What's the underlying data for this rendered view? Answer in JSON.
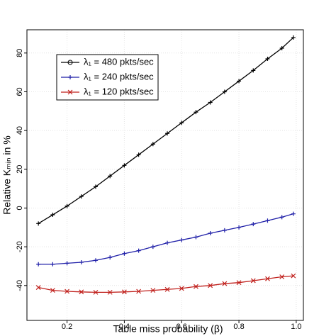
{
  "chart_data": {
    "type": "line",
    "xlabel": "Table miss probability (β)",
    "ylabel": "Relative Kₘᵢₙ in %",
    "x": [
      0.1,
      0.15,
      0.2,
      0.25,
      0.3,
      0.35,
      0.4,
      0.45,
      0.5,
      0.55,
      0.6,
      0.65,
      0.7,
      0.75,
      0.8,
      0.85,
      0.9,
      0.95,
      0.99
    ],
    "series": [
      {
        "name": "λ₁ = 480 pkts/sec",
        "color": "#000000",
        "marker": "plus",
        "legend_marker": "circle",
        "values": [
          -8,
          -3.5,
          1,
          6,
          11,
          16.5,
          22,
          27.5,
          33,
          38.5,
          44,
          49.5,
          54.5,
          60,
          65.5,
          71,
          77,
          82.5,
          88
        ]
      },
      {
        "name": "λ₁ = 240 pkts/sec",
        "color": "#1f1fa8",
        "marker": "plus",
        "legend_marker": "plus",
        "values": [
          -29,
          -29,
          -28.5,
          -28,
          -27,
          -25.5,
          -23.5,
          -22,
          -20,
          -18,
          -16.5,
          -15,
          -13,
          -11.5,
          -10,
          -8.3,
          -6.5,
          -4.7,
          -3
        ]
      },
      {
        "name": "λ₁ = 120 pkts/sec",
        "color": "#c0201c",
        "marker": "cross",
        "legend_marker": "cross",
        "values": [
          -41,
          -42.5,
          -43,
          -43.3,
          -43.5,
          -43.5,
          -43.3,
          -43,
          -42.5,
          -42,
          -41.5,
          -40.5,
          -40,
          -39,
          -38.5,
          -37.5,
          -36.5,
          -35.5,
          -35
        ]
      }
    ],
    "xlim": [
      0.06,
      1.025
    ],
    "ylim": [
      -58,
      92
    ],
    "xticks": [
      0.2,
      0.4,
      0.6,
      0.8,
      {
        "value": 1.0,
        "label": "1.0"
      }
    ],
    "yticks": [
      -40,
      -20,
      0,
      20,
      40,
      60,
      80
    ],
    "grid": true,
    "legend": "upper left"
  }
}
